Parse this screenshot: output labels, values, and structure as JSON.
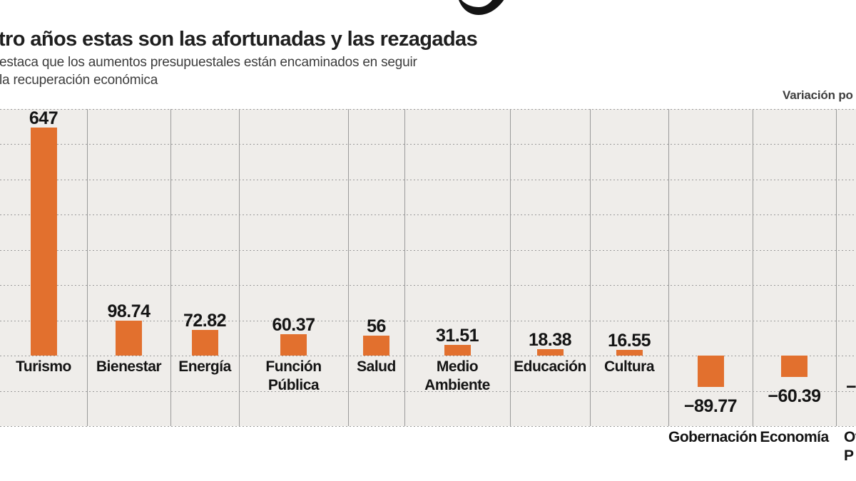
{
  "header": {
    "title": "tro años estas son las afortunadas y las rezagadas",
    "subtitle_line1": "estaca que los aumentos presupuestales están encaminados en seguir",
    "subtitle_line2": "la recuperación económica"
  },
  "legend": {
    "label": "Variación po",
    "swatch_color": "#e2702e"
  },
  "icons": {
    "legend_swatch": "orange-square",
    "headline_glyph": "cropped-bottom-curve-of-large-black-numeral"
  },
  "colors": {
    "bar": "#e2702e",
    "plot_background": "#efedea",
    "gridline": "#9b9b9b",
    "separator": "#9a9a9a",
    "title_text": "#1f1f1f",
    "subtitle_text": "#3d3d3d",
    "label_text": "#141414",
    "glyph": "#141414"
  },
  "chart_data": {
    "type": "bar",
    "title": "tro años estas son las afortunadas y las rezagadas",
    "subtitle": "estaca que los aumentos presupuestales están encaminados en seguir / la recuperación económica",
    "legend": [
      "Variación po"
    ],
    "legend_position": "top-right",
    "ylim": [
      -200,
      700
    ],
    "gridline_step": 100,
    "grid": {
      "horizontal": "dotted",
      "vertical_separators": "solid"
    },
    "bar_color": "#e2702e",
    "bars": [
      {
        "category": "Turismo",
        "value": 647,
        "value_label": "647"
      },
      {
        "category": "Bienestar",
        "value": 98.74,
        "value_label": "98.74"
      },
      {
        "category": "Energía",
        "value": 72.82,
        "value_label": "72.82"
      },
      {
        "category": "Función Pública",
        "value": 60.37,
        "value_label": "60.37"
      },
      {
        "category": "Salud",
        "value": 56,
        "value_label": "56"
      },
      {
        "category": "Medio Ambiente",
        "value": 31.51,
        "value_label": "31.51"
      },
      {
        "category": "Educación",
        "value": 18.38,
        "value_label": "18.38"
      },
      {
        "category": "Cultura",
        "value": 16.55,
        "value_label": "16.55"
      },
      {
        "category": "Gobernación",
        "value": -89.77,
        "value_label": "−89.77"
      },
      {
        "category": "Economía",
        "value": -60.39,
        "value_label": "−60.39"
      },
      {
        "category": "Ot P",
        "category_lines": [
          "Ot",
          "P"
        ],
        "value": null,
        "value_label": "−",
        "cropped_at_right_edge": true
      }
    ]
  }
}
